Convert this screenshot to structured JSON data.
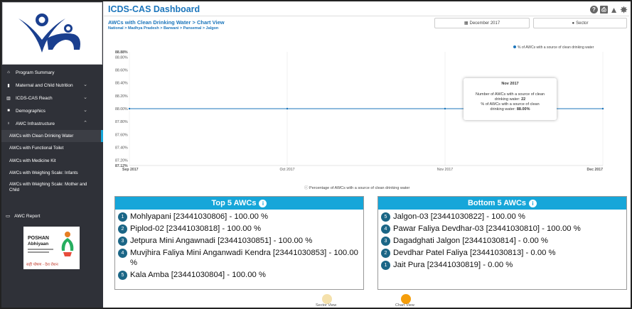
{
  "colors": {
    "sidebar": "#2f3138",
    "accent": "#16a6d9",
    "title_blue": "#1b75bb",
    "badge": "#1b6686",
    "sector_circle": "#f5e1ac",
    "chart_circle": "#f59e0b"
  },
  "header": {
    "title": "ICDS-CAS Dashboard",
    "icons": [
      "help-icon",
      "print-icon",
      "alert-icon",
      "gear-icon"
    ]
  },
  "section": {
    "title": "AWCs with Clean Drinking Water > Chart View",
    "breadcrumb": "National > Madhya Pradesh > Barwani > Pansemal > Jalgon"
  },
  "filters": {
    "date": "December 2017",
    "level": "Sector"
  },
  "sidebar": {
    "items": [
      {
        "label": "Program Summary",
        "icon": "home-icon",
        "chevron": false
      },
      {
        "label": "Maternal and Child Nutrition",
        "icon": "food-icon",
        "chevron": true
      },
      {
        "label": "ICDS-CAS Reach",
        "icon": "chart-icon",
        "chevron": true
      },
      {
        "label": "Demographics",
        "icon": "people-icon",
        "chevron": true
      },
      {
        "label": "AWC Infrastructure",
        "icon": "pin-icon",
        "chevron": true
      }
    ],
    "sub_items": [
      "AWCs with Clean Drinking Water",
      "AWCs with Functional Toilet",
      "AWCs with Medicine Kit",
      "AWCs with Weighing Scale: Infants",
      "AWCs with Weighing Scale: Mother and Child"
    ],
    "report": "AWC Report",
    "poshan": {
      "title": "POSHAN",
      "subtitle": "Abhiyaan",
      "tagline_hi": "सही पोषण - देश रोशन"
    }
  },
  "chart_data": {
    "type": "line",
    "x": [
      "Sep 2017",
      "Oct 2017",
      "Nov 2017",
      "Dec 2017"
    ],
    "series": [
      {
        "name": "% of AWCs with a source of clean drinking water",
        "values": [
          88.0,
          88.0,
          88.0,
          88.0
        ]
      }
    ],
    "ylim": [
      87.12,
      88.88
    ],
    "yticks": [
      "88.88%",
      "88.80%",
      "88.60%",
      "88.40%",
      "88.20%",
      "88.00%",
      "87.80%",
      "87.60%",
      "87.40%",
      "87.20%",
      "87.12%"
    ],
    "tooltip": {
      "title": "Nov 2017",
      "line1": "Number of AWCs with a source of clean drinking water:",
      "value1": "22",
      "line2": "% of AWCs with a source of clean drinking water:",
      "value2": "88.00%"
    },
    "footer": "Percentage of AWCs with a source of clean drinking water",
    "legend_position": "top-right"
  },
  "top5": {
    "title": "Top 5 AWCs",
    "items": [
      {
        "rank": "1",
        "text": "Mohlyapani [23441030806] - 100.00 %"
      },
      {
        "rank": "2",
        "text": "Piplod-02 [23441030818] - 100.00 %"
      },
      {
        "rank": "3",
        "text": "Jetpura Mini Angawnadi [23441030851] - 100.00 %"
      },
      {
        "rank": "4",
        "text": "Muvjhira Faliya Mini Anganwadi Kendra [23441030853] - 100.00 %"
      },
      {
        "rank": "5",
        "text": "Kala Amba [23441030804] - 100.00 %"
      }
    ]
  },
  "bottom5": {
    "title": "Bottom 5 AWCs",
    "items": [
      {
        "rank": "5",
        "text": "Jalgon-03 [23441030822] - 100.00 %"
      },
      {
        "rank": "4",
        "text": "Pawar Faliya Devdhar-03 [23441030810] - 100.00 %"
      },
      {
        "rank": "3",
        "text": "Dagadghati Jalgon [23441030814] - 0.00 %"
      },
      {
        "rank": "2",
        "text": "Devdhar Patel Faliya [23441030813] - 0.00 %"
      },
      {
        "rank": "1",
        "text": "Jait Pura [23441030819] - 0.00 %"
      }
    ]
  },
  "views": {
    "sector": "Sector View",
    "chart": "Chart View"
  }
}
